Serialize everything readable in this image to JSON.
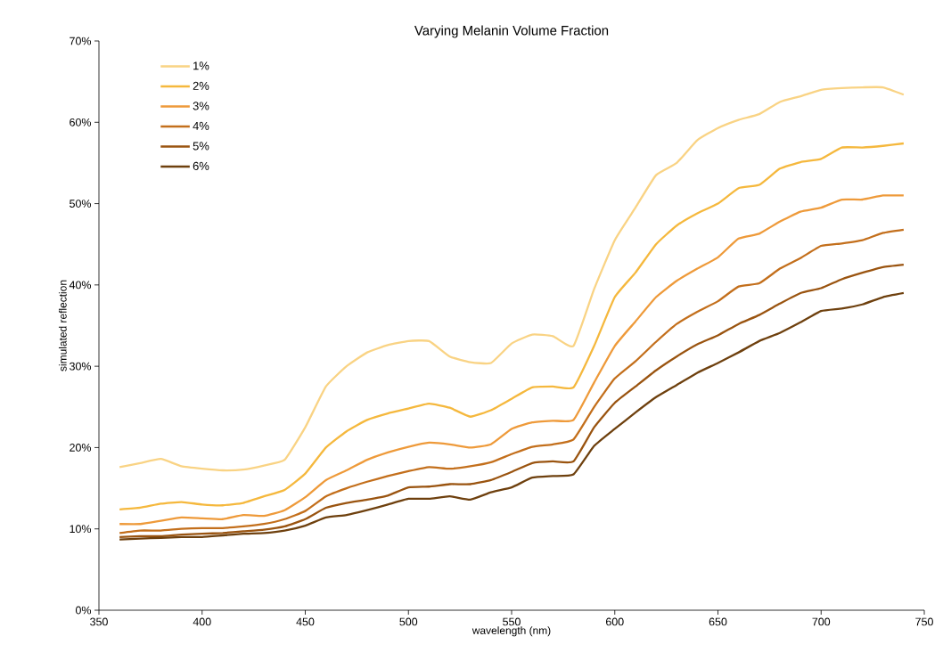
{
  "chart_data": {
    "type": "line",
    "title": "Varying Melanin Volume Fraction",
    "xlabel": "wavelength (nm)",
    "ylabel": "simulated reflection",
    "x": [
      360,
      370,
      380,
      390,
      400,
      410,
      420,
      430,
      440,
      450,
      460,
      470,
      480,
      490,
      500,
      510,
      520,
      530,
      540,
      550,
      560,
      570,
      580,
      590,
      600,
      610,
      620,
      630,
      640,
      650,
      660,
      670,
      680,
      690,
      700,
      710,
      720,
      730,
      740
    ],
    "series": [
      {
        "name": "1%",
        "color": "#f9d384",
        "values": [
          17.6,
          18.1,
          18.6,
          17.7,
          17.4,
          17.2,
          17.3,
          17.8,
          18.5,
          22.5,
          27.5,
          30.0,
          31.7,
          32.6,
          33.1,
          33.1,
          31.2,
          30.5,
          30.4,
          32.8,
          33.9,
          33.7,
          32.5,
          39.5,
          45.5,
          49.5,
          53.5,
          55.0,
          57.8,
          59.3,
          60.3,
          61.0,
          62.5,
          63.2,
          64.0,
          64.2,
          64.3,
          64.3,
          63.4
        ]
      },
      {
        "name": "2%",
        "color": "#f5b83d",
        "values": [
          12.4,
          12.6,
          13.1,
          13.3,
          13.0,
          12.9,
          13.2,
          14.0,
          14.8,
          16.8,
          20.0,
          22.0,
          23.4,
          24.2,
          24.8,
          25.4,
          24.9,
          23.8,
          24.6,
          26.0,
          27.4,
          27.5,
          27.4,
          32.5,
          38.5,
          41.5,
          45.0,
          47.3,
          48.8,
          50.0,
          51.9,
          52.3,
          54.3,
          55.1,
          55.5,
          56.9,
          56.9,
          57.1,
          57.4
        ]
      },
      {
        "name": "3%",
        "color": "#ee9a3a",
        "values": [
          10.6,
          10.6,
          11.0,
          11.4,
          11.3,
          11.2,
          11.7,
          11.6,
          12.3,
          13.9,
          16.0,
          17.2,
          18.5,
          19.4,
          20.1,
          20.6,
          20.4,
          20.0,
          20.4,
          22.3,
          23.1,
          23.3,
          23.4,
          28.0,
          32.5,
          35.5,
          38.5,
          40.5,
          42.0,
          43.4,
          45.7,
          46.3,
          47.8,
          49.0,
          49.5,
          50.5,
          50.5,
          51.0,
          51.0
        ]
      },
      {
        "name": "4%",
        "color": "#c36f1c",
        "values": [
          9.5,
          9.8,
          9.8,
          10.0,
          10.1,
          10.1,
          10.3,
          10.6,
          11.2,
          12.2,
          14.0,
          15.0,
          15.8,
          16.5,
          17.1,
          17.6,
          17.4,
          17.7,
          18.2,
          19.2,
          20.1,
          20.4,
          21.0,
          25.0,
          28.5,
          30.6,
          33.0,
          35.2,
          36.7,
          38.0,
          39.8,
          40.2,
          42.0,
          43.3,
          44.8,
          45.1,
          45.5,
          46.4,
          46.8
        ]
      },
      {
        "name": "5%",
        "color": "#9a5410",
        "values": [
          9.0,
          9.1,
          9.1,
          9.3,
          9.4,
          9.5,
          9.7,
          9.9,
          10.3,
          11.2,
          12.6,
          13.2,
          13.6,
          14.1,
          15.1,
          15.2,
          15.5,
          15.5,
          16.0,
          17.0,
          18.1,
          18.3,
          18.3,
          22.5,
          25.5,
          27.5,
          29.5,
          31.2,
          32.7,
          33.8,
          35.2,
          36.3,
          37.7,
          39.0,
          39.6,
          40.7,
          41.5,
          42.2,
          42.5
        ]
      },
      {
        "name": "6%",
        "color": "#6e400e",
        "values": [
          8.7,
          8.8,
          8.9,
          9.0,
          9.0,
          9.2,
          9.4,
          9.5,
          9.8,
          10.4,
          11.4,
          11.7,
          12.3,
          13.0,
          13.7,
          13.7,
          14.0,
          13.6,
          14.5,
          15.1,
          16.3,
          16.5,
          16.7,
          20.2,
          22.3,
          24.3,
          26.2,
          27.7,
          29.2,
          30.4,
          31.7,
          33.1,
          34.1,
          35.4,
          36.8,
          37.1,
          37.6,
          38.5,
          39.0
        ]
      }
    ],
    "xlim": [
      350,
      750
    ],
    "xticks": [
      350,
      400,
      450,
      500,
      550,
      600,
      650,
      700,
      750
    ],
    "ylim": [
      0,
      70
    ],
    "yticks": [
      {
        "value": 0,
        "label": "0%"
      },
      {
        "value": 10,
        "label": "10%"
      },
      {
        "value": 20,
        "label": "20%"
      },
      {
        "value": 30,
        "label": "30%"
      },
      {
        "value": 40,
        "label": "40%"
      },
      {
        "value": 50,
        "label": "50%"
      },
      {
        "value": 60,
        "label": "60%"
      },
      {
        "value": 70,
        "label": "70%"
      }
    ],
    "legend": "top left",
    "marker": "none",
    "line_style": "solid"
  }
}
